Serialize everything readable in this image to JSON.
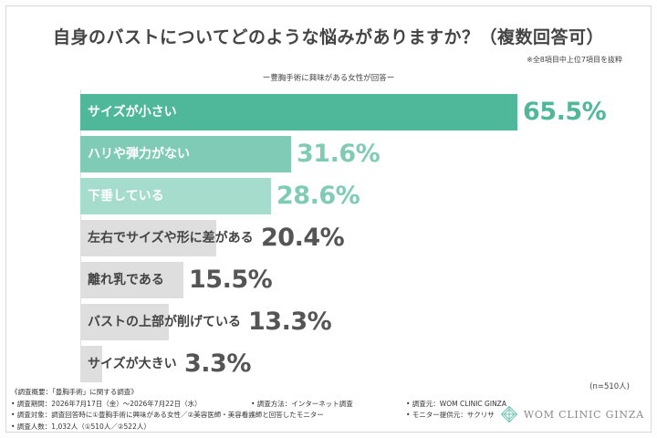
{
  "title": "自身のバストについてどのような悩みがありますか？（複数回答可）",
  "note": "※全8項目中上位7項目を抜粋",
  "subtitle": "ー豊胸手術に興味がある女性が回答ー",
  "sample_size": "(n=510人)",
  "chart_data": {
    "type": "bar",
    "orientation": "horizontal",
    "categories": [
      "サイズが小さい",
      "ハリや弾力がない",
      "下垂している",
      "左右でサイズや形に差がある",
      "離れ乳である",
      "バストの上部が削げている",
      "サイズが大きい"
    ],
    "values": [
      65.5,
      31.6,
      28.6,
      20.4,
      15.5,
      13.3,
      3.3
    ],
    "value_labels": [
      "65.5%",
      "31.6%",
      "28.6%",
      "20.4%",
      "15.5%",
      "13.3%",
      "3.3%"
    ],
    "unit": "%",
    "bar_colors": [
      "#4fb89b",
      "#80cbb6",
      "#a5dccc",
      "#dedede",
      "#dedede",
      "#dedede",
      "#dedede"
    ],
    "label_colors": [
      "#ffffff",
      "#ffffff",
      "#ffffff",
      "#444444",
      "#444444",
      "#444444",
      "#444444"
    ],
    "value_colors": [
      "#4fb89b",
      "#80cbb6",
      "#80cbb6",
      "#555555",
      "#555555",
      "#555555",
      "#555555"
    ],
    "xlim": [
      0,
      100
    ],
    "grid": false,
    "legend": "none"
  },
  "footer": {
    "overview": "《調査概要：「豊胸手術」に関する調査》",
    "period": "• 調査期間：2026年7月17日（金）〜2026年7月22日（水）",
    "method": "• 調査方法：インターネット調査",
    "source": "• 調査元：WOM CLINIC GINZA",
    "target": "• 調査対象：調査回答時に①豊胸手術に興味がある女性／②美容医師・美容看護師と回答したモニター",
    "provider": "• モニター提供元：サクリサ",
    "count": "• 調査人数：1,032人（①510人／②522人）"
  },
  "logo": {
    "text": "WOM CLINIC GINZA",
    "color": "#6fc3b2"
  }
}
